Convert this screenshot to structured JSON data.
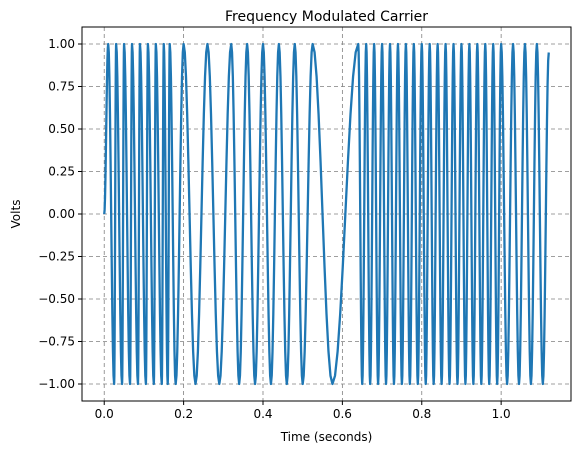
{
  "chart_data": {
    "type": "line",
    "title": "Frequency Modulated Carrier",
    "xlabel": "Time (seconds)",
    "ylabel": "Volts",
    "xlim": [
      -0.056,
      1.176
    ],
    "ylim": [
      -1.1,
      1.1
    ],
    "x_ticks": [
      0.0,
      0.2,
      0.4,
      0.6,
      0.8,
      1.0
    ],
    "x_tick_labels": [
      "0.0",
      "0.2",
      "0.4",
      "0.6",
      "0.8",
      "1.0"
    ],
    "y_ticks": [
      1.0,
      0.75,
      0.5,
      0.25,
      0.0,
      -0.25,
      -0.5,
      -0.75,
      -1.0
    ],
    "y_tick_labels": [
      "1.00",
      "0.75",
      "0.50",
      "0.25",
      "0.00",
      "−0.25",
      "−0.50",
      "−0.75",
      "−1.00"
    ],
    "grid": true,
    "grid_style": "dashed",
    "series": [
      {
        "color": "#1f77b4",
        "x_start": 0.0,
        "x_end": 1.12,
        "y_start": 0.0,
        "y_end": 0.95,
        "peak_times": [
          0.01,
          0.03,
          0.05,
          0.07,
          0.09,
          0.11,
          0.13,
          0.15,
          0.165,
          0.2,
          0.26,
          0.32,
          0.36,
          0.4,
          0.44,
          0.48,
          0.525,
          0.64,
          0.66,
          0.68,
          0.7,
          0.72,
          0.74,
          0.76,
          0.78,
          0.8,
          0.82,
          0.84,
          0.86,
          0.88,
          0.9,
          0.92,
          0.94,
          0.96,
          0.98,
          1.0,
          1.03,
          1.06,
          1.09
        ],
        "trough_times": [
          0.025,
          0.045,
          0.065,
          0.085,
          0.105,
          0.125,
          0.145,
          0.16,
          0.18,
          0.23,
          0.29,
          0.34,
          0.38,
          0.42,
          0.46,
          0.5,
          0.575,
          0.65,
          0.67,
          0.69,
          0.71,
          0.73,
          0.75,
          0.77,
          0.79,
          0.81,
          0.83,
          0.85,
          0.87,
          0.89,
          0.91,
          0.93,
          0.95,
          0.97,
          0.99,
          1.015,
          1.045,
          1.075,
          1.105
        ]
      }
    ]
  }
}
